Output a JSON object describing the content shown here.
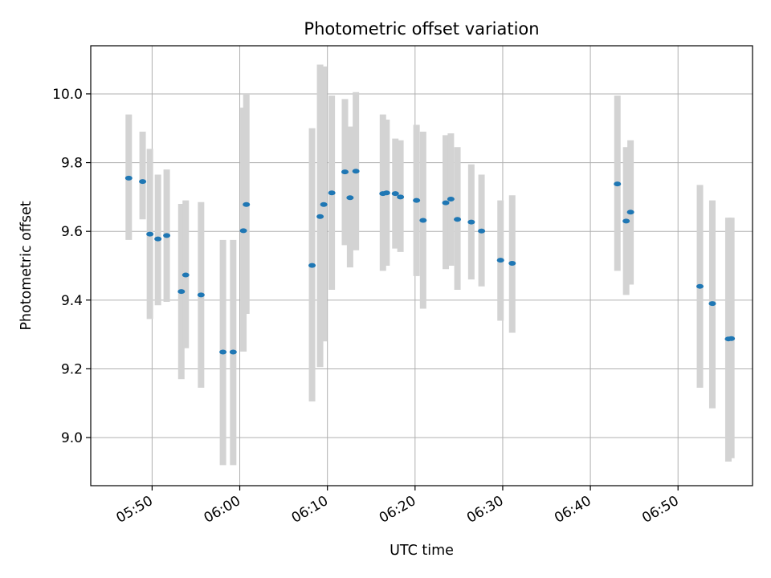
{
  "chart_data": {
    "type": "scatter",
    "title": "Photometric offset variation",
    "xlabel": "UTC time",
    "ylabel": "Photometric offset",
    "xlim": [
      "05:43:00",
      "06:58:30"
    ],
    "ylim": [
      8.86,
      10.14
    ],
    "grid": true,
    "x_ticks": [
      "05:50",
      "06:00",
      "06:10",
      "06:20",
      "06:30",
      "06:40",
      "06:50"
    ],
    "y_ticks": [
      "9.0",
      "9.2",
      "9.4",
      "9.6",
      "9.8",
      "10.0"
    ],
    "marker_color": "#1f77b4",
    "errorbar_color": "#d3d3d3",
    "points": [
      {
        "t": "05:47:20",
        "y": 9.755,
        "lo": 9.575,
        "hi": 9.94
      },
      {
        "t": "05:48:55",
        "y": 9.745,
        "lo": 9.635,
        "hi": 9.89
      },
      {
        "t": "05:49:45",
        "y": 9.592,
        "lo": 9.345,
        "hi": 9.84
      },
      {
        "t": "05:50:40",
        "y": 9.578,
        "lo": 9.385,
        "hi": 9.765
      },
      {
        "t": "05:51:40",
        "y": 9.588,
        "lo": 9.395,
        "hi": 9.78
      },
      {
        "t": "05:53:20",
        "y": 9.425,
        "lo": 9.17,
        "hi": 9.68
      },
      {
        "t": "05:53:50",
        "y": 9.473,
        "lo": 9.26,
        "hi": 9.69
      },
      {
        "t": "05:55:35",
        "y": 9.415,
        "lo": 9.145,
        "hi": 9.685
      },
      {
        "t": "05:58:05",
        "y": 9.249,
        "lo": 8.92,
        "hi": 9.575
      },
      {
        "t": "05:59:15",
        "y": 9.249,
        "lo": 8.92,
        "hi": 9.575
      },
      {
        "t": "06:00:25",
        "y": 9.602,
        "lo": 9.25,
        "hi": 9.96
      },
      {
        "t": "06:00:45",
        "y": 9.678,
        "lo": 9.36,
        "hi": 10.0
      },
      {
        "t": "06:08:15",
        "y": 9.501,
        "lo": 9.105,
        "hi": 9.9
      },
      {
        "t": "06:09:10",
        "y": 9.643,
        "lo": 9.205,
        "hi": 10.085
      },
      {
        "t": "06:09:35",
        "y": 9.678,
        "lo": 9.28,
        "hi": 10.08
      },
      {
        "t": "06:10:30",
        "y": 9.712,
        "lo": 9.43,
        "hi": 9.995
      },
      {
        "t": "06:12:00",
        "y": 9.773,
        "lo": 9.56,
        "hi": 9.985
      },
      {
        "t": "06:12:35",
        "y": 9.698,
        "lo": 9.495,
        "hi": 9.905
      },
      {
        "t": "06:13:15",
        "y": 9.775,
        "lo": 9.545,
        "hi": 10.005
      },
      {
        "t": "06:16:20",
        "y": 9.71,
        "lo": 9.485,
        "hi": 9.94
      },
      {
        "t": "06:16:45",
        "y": 9.712,
        "lo": 9.5,
        "hi": 9.925
      },
      {
        "t": "06:17:45",
        "y": 9.71,
        "lo": 9.55,
        "hi": 9.87
      },
      {
        "t": "06:18:20",
        "y": 9.7,
        "lo": 9.54,
        "hi": 9.865
      },
      {
        "t": "06:20:10",
        "y": 9.69,
        "lo": 9.47,
        "hi": 9.91
      },
      {
        "t": "06:20:55",
        "y": 9.632,
        "lo": 9.375,
        "hi": 9.89
      },
      {
        "t": "06:23:30",
        "y": 9.683,
        "lo": 9.49,
        "hi": 9.88
      },
      {
        "t": "06:24:05",
        "y": 9.694,
        "lo": 9.5,
        "hi": 9.885
      },
      {
        "t": "06:24:50",
        "y": 9.635,
        "lo": 9.43,
        "hi": 9.845
      },
      {
        "t": "06:26:25",
        "y": 9.627,
        "lo": 9.46,
        "hi": 9.795
      },
      {
        "t": "06:27:35",
        "y": 9.601,
        "lo": 9.44,
        "hi": 9.765
      },
      {
        "t": "06:29:45",
        "y": 9.516,
        "lo": 9.34,
        "hi": 9.69
      },
      {
        "t": "06:31:05",
        "y": 9.507,
        "lo": 9.305,
        "hi": 9.705
      },
      {
        "t": "06:43:05",
        "y": 9.738,
        "lo": 9.485,
        "hi": 9.995
      },
      {
        "t": "06:44:05",
        "y": 9.63,
        "lo": 9.415,
        "hi": 9.845
      },
      {
        "t": "06:44:35",
        "y": 9.656,
        "lo": 9.445,
        "hi": 9.865
      },
      {
        "t": "06:52:30",
        "y": 9.44,
        "lo": 9.145,
        "hi": 9.735
      },
      {
        "t": "06:53:55",
        "y": 9.39,
        "lo": 9.085,
        "hi": 9.69
      },
      {
        "t": "06:55:45",
        "y": 9.287,
        "lo": 8.93,
        "hi": 9.64
      },
      {
        "t": "06:56:05",
        "y": 9.288,
        "lo": 8.94,
        "hi": 9.64
      }
    ]
  }
}
